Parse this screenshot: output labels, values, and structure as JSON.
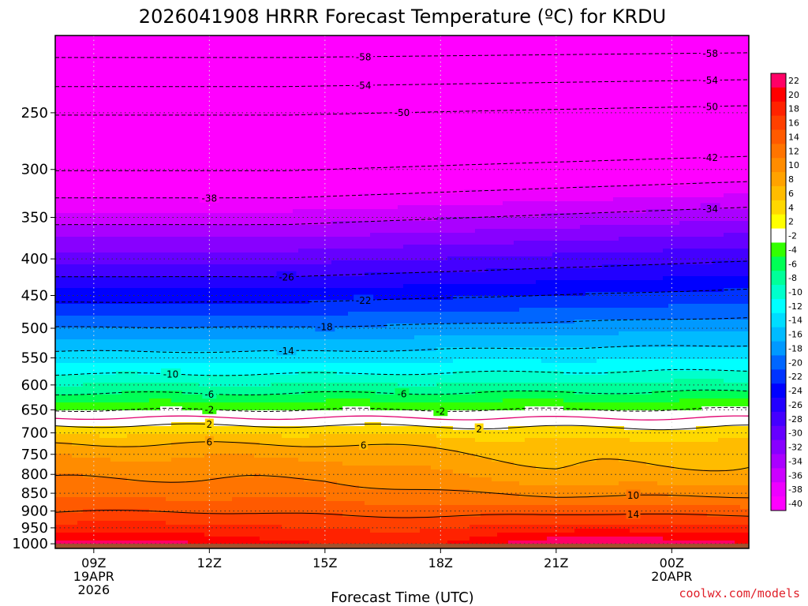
{
  "chart_data": {
    "type": "heatmap",
    "title": "2026041908 HRRR Forecast Temperature (ºC) for KRDU",
    "xlabel": "Forecast Time (UTC)",
    "ylabel": "",
    "x_ticks": [
      {
        "hour": 9,
        "label": "09Z",
        "sub1": "19APR",
        "sub2": "2026"
      },
      {
        "hour": 12,
        "label": "12Z",
        "sub1": "",
        "sub2": ""
      },
      {
        "hour": 15,
        "label": "15Z",
        "sub1": "",
        "sub2": ""
      },
      {
        "hour": 18,
        "label": "18Z",
        "sub1": "",
        "sub2": ""
      },
      {
        "hour": 21,
        "label": "21Z",
        "sub1": "",
        "sub2": ""
      },
      {
        "hour": 24,
        "label": "00Z",
        "sub1": "20APR",
        "sub2": ""
      }
    ],
    "xlim": [
      8,
      26
    ],
    "y_scale": "log",
    "ylim": [
      1015,
      195
    ],
    "y_ticks": [
      250,
      300,
      350,
      400,
      450,
      500,
      550,
      600,
      650,
      700,
      750,
      800,
      850,
      900,
      950,
      1000
    ],
    "grid": true,
    "ground_pressure": 1000,
    "colorbar": {
      "labels": [
        "22",
        "20",
        "18",
        "16",
        "14",
        "12",
        "10",
        "8",
        "6",
        "4",
        "2",
        "-2",
        "-4",
        "-6",
        "-8",
        "-10",
        "-12",
        "-14",
        "-16",
        "-18",
        "-20",
        "-22",
        "-24",
        "-26",
        "-28",
        "-30",
        "-32",
        "-34",
        "-36",
        "-38",
        "-40"
      ],
      "colors": [
        "#ff0066",
        "#ff0000",
        "#ff2200",
        "#ff4000",
        "#ff5a00",
        "#ff7400",
        "#ff8c00",
        "#ffa200",
        "#ffbc00",
        "#ffd800",
        "#ffff00",
        "#ffffff",
        "#33ff00",
        "#00ff55",
        "#00ff99",
        "#00ffcc",
        "#00ffff",
        "#00ddff",
        "#00bbff",
        "#0099ff",
        "#0066ff",
        "#0033ff",
        "#0000ff",
        "#2200ff",
        "#4400ff",
        "#6600ff",
        "#8800ff",
        "#aa00ff",
        "#cc00ff",
        "#ee00ff",
        "#ff00ff"
      ]
    },
    "isotherms": [
      {
        "value": -58,
        "labels": [
          {
            "x": 16,
            "text": "-58"
          },
          {
            "x": 25,
            "text": "-58"
          }
        ]
      },
      {
        "value": -54,
        "labels": [
          {
            "x": 16,
            "text": "-54"
          },
          {
            "x": 25,
            "text": "-54"
          }
        ]
      },
      {
        "value": -50,
        "labels": [
          {
            "x": 17,
            "text": "-50"
          },
          {
            "x": 25,
            "text": "-50"
          }
        ]
      },
      {
        "value": -42,
        "labels": [
          {
            "x": 25,
            "text": "-42"
          }
        ]
      },
      {
        "value": -38,
        "labels": [
          {
            "x": 12,
            "text": "-38"
          }
        ]
      },
      {
        "value": -34,
        "labels": [
          {
            "x": 25,
            "text": "-34"
          }
        ]
      },
      {
        "value": -26,
        "labels": [
          {
            "x": 14,
            "text": "-26"
          }
        ]
      },
      {
        "value": -22,
        "labels": [
          {
            "x": 16,
            "text": "-22"
          }
        ]
      },
      {
        "value": -18,
        "labels": [
          {
            "x": 15,
            "text": "-18"
          }
        ]
      },
      {
        "value": -14,
        "labels": [
          {
            "x": 14,
            "text": "-14"
          }
        ]
      },
      {
        "value": -10,
        "labels": [
          {
            "x": 11,
            "text": "-10"
          }
        ]
      },
      {
        "value": -6,
        "labels": [
          {
            "x": 12,
            "text": "-6"
          },
          {
            "x": 17,
            "text": "-6"
          }
        ]
      },
      {
        "value": -2,
        "labels": [
          {
            "x": 12,
            "text": "-2"
          },
          {
            "x": 18,
            "text": "-2"
          }
        ]
      },
      {
        "value": 2,
        "labels": [
          {
            "x": 12,
            "text": "2"
          },
          {
            "x": 19,
            "text": "2"
          }
        ]
      },
      {
        "value": 6,
        "labels": [
          {
            "x": 12,
            "text": "6"
          },
          {
            "x": 16,
            "text": "6"
          }
        ]
      },
      {
        "value": 10,
        "labels": [
          {
            "x": 23,
            "text": "10"
          }
        ]
      },
      {
        "value": 14,
        "labels": [
          {
            "x": 23,
            "text": "14"
          }
        ]
      }
    ],
    "credit": "coolwx.com/models"
  }
}
